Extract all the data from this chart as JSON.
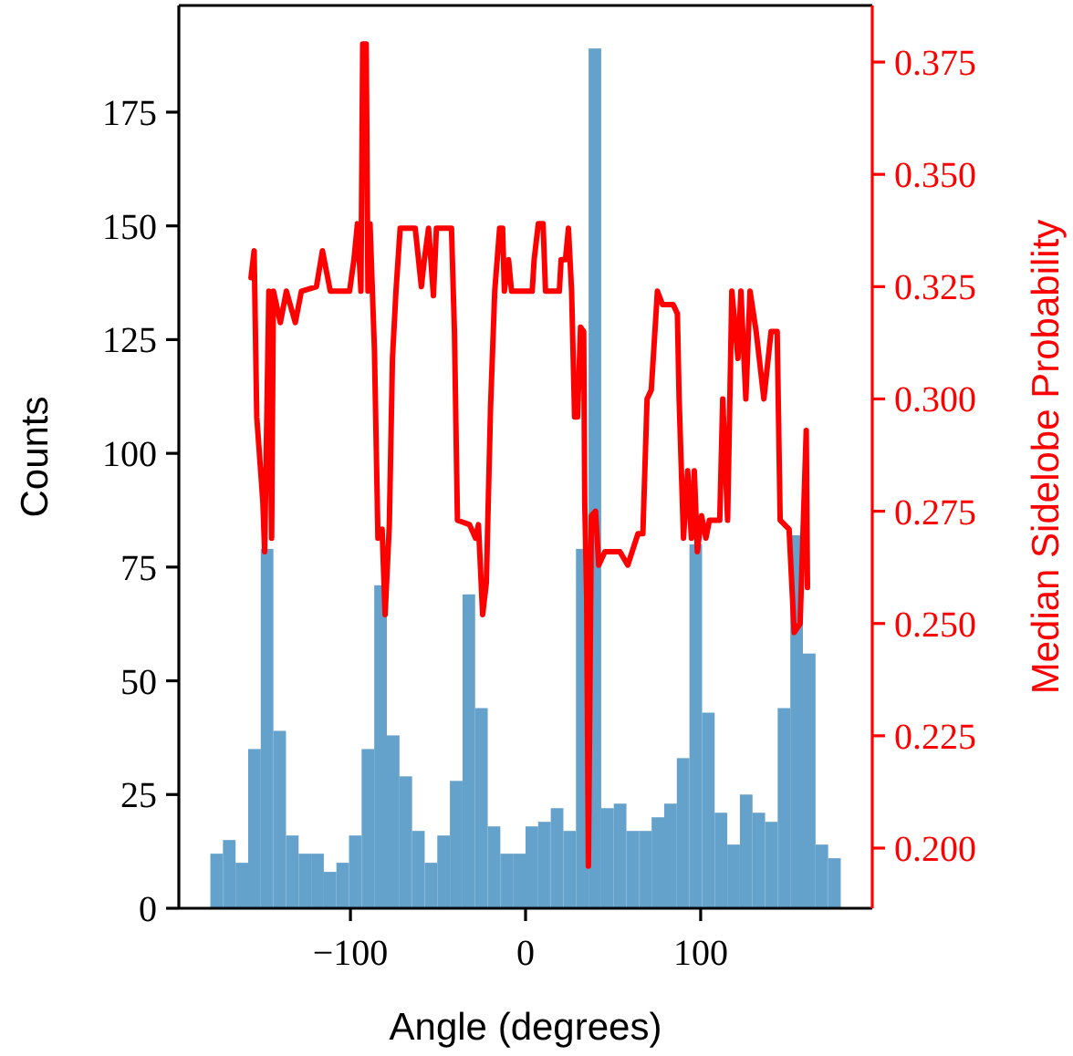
{
  "chart_data": {
    "type": "histogram",
    "xlabel": "Angle (degrees)",
    "ylabel": "Counts",
    "y2label": "Median Sidelobe Probability",
    "xlim": [
      -198,
      198
    ],
    "xticks": [
      {
        "value": -100,
        "label": "−100"
      },
      0,
      100
    ],
    "ylim": [
      0,
      198.45
    ],
    "yticks": [
      0,
      25,
      50,
      75,
      100,
      125,
      150,
      175
    ],
    "y2lim": [
      0.1866,
      0.3876
    ],
    "y2ticks": [
      {
        "value": 0.2,
        "label": "0.200"
      },
      {
        "value": 0.225,
        "label": "0.225"
      },
      {
        "value": 0.25,
        "label": "0.250"
      },
      {
        "value": 0.275,
        "label": "0.275"
      },
      {
        "value": 0.3,
        "label": "0.300"
      },
      {
        "value": 0.325,
        "label": "0.325"
      },
      {
        "value": 0.35,
        "label": "0.350"
      },
      {
        "value": 0.375,
        "label": "0.375"
      }
    ],
    "series": [
      {
        "color": "#64a1cb",
        "bins": [
          -180,
          -172.8,
          -165.6,
          -158.4,
          -151.2,
          -144,
          -136.8,
          -129.6,
          -122.4,
          -115.2,
          -108,
          -100.8,
          -93.6,
          -86.4,
          -79.2,
          -72,
          -64.8,
          -57.6,
          -50.4,
          -43.2,
          -36,
          -28.8,
          -21.6,
          -14.4,
          -7.2,
          0,
          7.2,
          14.4,
          21.6,
          28.8,
          36,
          43.2,
          50.4,
          57.6,
          64.8,
          72,
          79.2,
          86.4,
          93.6,
          100.8,
          108,
          115.2,
          122.4,
          129.6,
          136.8,
          144,
          151.2,
          158.4,
          165.6,
          172.8,
          180
        ],
        "values": [
          12,
          15,
          10,
          35,
          79,
          39,
          16,
          12,
          12,
          8,
          10,
          16,
          35,
          71,
          38,
          29,
          17,
          10,
          16,
          28,
          69,
          44,
          18,
          12,
          12,
          18,
          19,
          22,
          17,
          79,
          189,
          22,
          23,
          17,
          17,
          20,
          23,
          33,
          80,
          43,
          21,
          14,
          25,
          21,
          19,
          44,
          82,
          56,
          14,
          11
        ]
      },
      {
        "type": "line",
        "axis": "y2",
        "color": "#ff0000",
        "x": [
          -156.8,
          -155,
          -153.5,
          -150,
          -149,
          -146.6,
          -145,
          -144,
          -140,
          -136.6,
          -131.5,
          -128,
          -119.4,
          -116,
          -111.5,
          -100.5,
          -98,
          -96,
          -94,
          -93,
          -91,
          -90,
          -88.8,
          -86.3,
          -84.3,
          -81.9,
          -80.2,
          -77.8,
          -76,
          -74,
          -71.6,
          -63,
          -59.5,
          -57.8,
          -55.4,
          -52.6,
          -50.9,
          -42.3,
          -40.6,
          -38.9,
          -32,
          -28.6,
          -26.9,
          -24.5,
          -22.4,
          -20,
          -17.6,
          -14.8,
          -13.1,
          -12.1,
          -9.7,
          -8,
          -4.8,
          3.8,
          4.9,
          7.3,
          10,
          11.4,
          19.3,
          20.3,
          22.8,
          24.5,
          26.3,
          28,
          29.7,
          31.4,
          33.2,
          33.8,
          34.9,
          35.9,
          37.6,
          40,
          41.8,
          45.3,
          53.9,
          58.4,
          64.2,
          67,
          69.4,
          71.8,
          75.3,
          78.2,
          84.3,
          86.7,
          87.7,
          90.2,
          92.6,
          94.7,
          96.4,
          98.1,
          100.5,
          103,
          105,
          110.9,
          112.6,
          115.4,
          117.8,
          121.3,
          123,
          125.8,
          128.2,
          131.7,
          136.1,
          140.2,
          143.7,
          145.4,
          150.5,
          153.4,
          156.8,
          158.5,
          160.3,
          161
        ],
        "values": [
          0.327,
          0.333,
          0.296,
          0.277,
          0.266,
          0.324,
          0.269,
          0.324,
          0.317,
          0.324,
          0.317,
          0.324,
          0.325,
          0.333,
          0.324,
          0.324,
          0.331,
          0.339,
          0.324,
          0.379,
          0.379,
          0.324,
          0.339,
          0.311,
          0.269,
          0.271,
          0.252,
          0.272,
          0.309,
          0.324,
          0.338,
          0.338,
          0.325,
          0.331,
          0.338,
          0.323,
          0.338,
          0.338,
          0.315,
          0.273,
          0.272,
          0.269,
          0.272,
          0.252,
          0.259,
          0.298,
          0.324,
          0.338,
          0.338,
          0.324,
          0.331,
          0.324,
          0.324,
          0.324,
          0.331,
          0.339,
          0.339,
          0.324,
          0.324,
          0.331,
          0.331,
          0.338,
          0.324,
          0.296,
          0.296,
          0.316,
          0.315,
          0.277,
          0.256,
          0.196,
          0.274,
          0.275,
          0.263,
          0.266,
          0.266,
          0.263,
          0.27,
          0.27,
          0.3,
          0.302,
          0.324,
          0.321,
          0.321,
          0.319,
          0.3,
          0.269,
          0.284,
          0.269,
          0.284,
          0.266,
          0.274,
          0.269,
          0.273,
          0.273,
          0.3,
          0.273,
          0.324,
          0.309,
          0.324,
          0.3,
          0.324,
          0.315,
          0.3,
          0.315,
          0.315,
          0.273,
          0.271,
          0.248,
          0.25,
          0.271,
          0.293,
          0.258
        ]
      }
    ]
  }
}
